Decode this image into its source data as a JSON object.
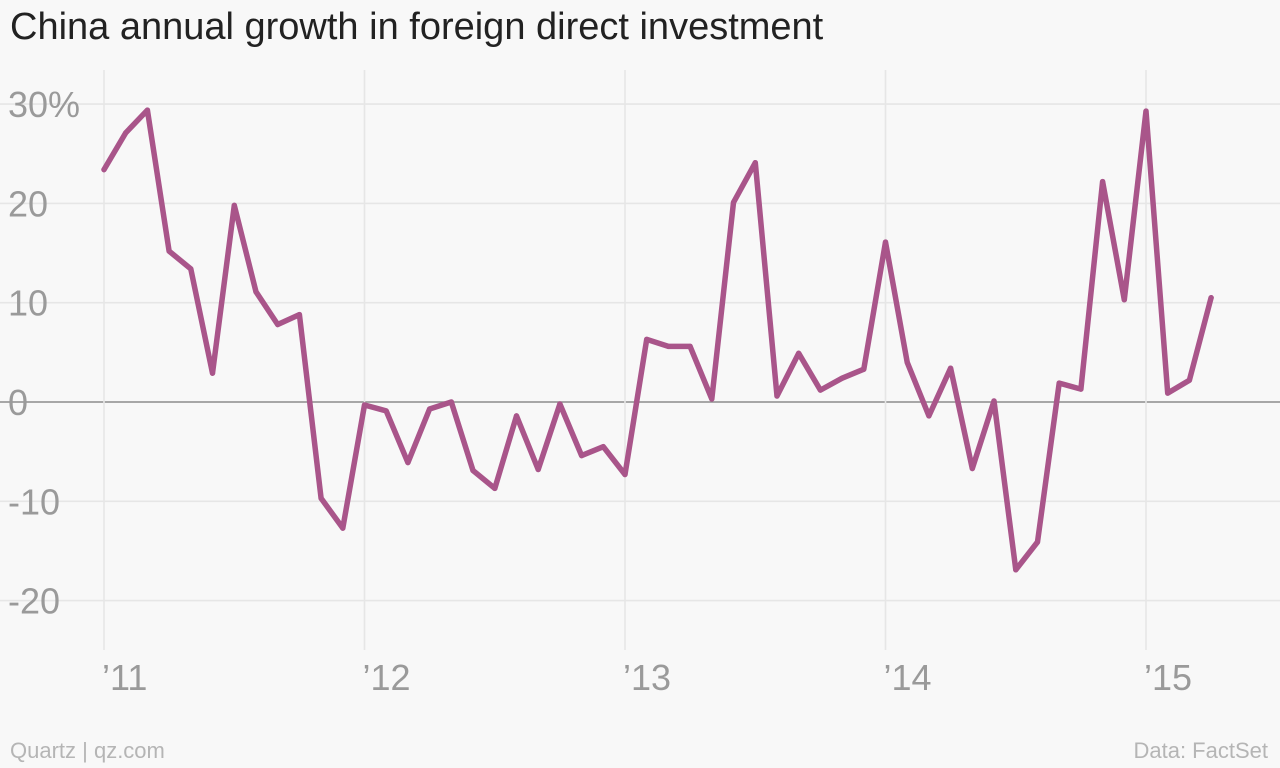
{
  "title": "China annual growth in foreign direct investment",
  "footer": {
    "credit": "Quartz | qz.com",
    "source": "Data: FactSet"
  },
  "colors": {
    "line": "#a9558a",
    "grid": "#e6e6e6",
    "zero_line": "#8c8c8c",
    "tick_text": "#9a9a9a",
    "background": "#f8f8f8"
  },
  "chart_data": {
    "type": "line",
    "title": "China annual growth in foreign direct investment",
    "xlabel": "",
    "ylabel": "",
    "ylim": [
      -25,
      32
    ],
    "y_ticks": [
      {
        "value": 30,
        "label": "30%"
      },
      {
        "value": 20,
        "label": "20"
      },
      {
        "value": 10,
        "label": "10"
      },
      {
        "value": 0,
        "label": "0"
      },
      {
        "value": -10,
        "label": "-10"
      },
      {
        "value": -20,
        "label": "-20"
      }
    ],
    "x_ticks": [
      {
        "value": "2011-01",
        "label": "’11"
      },
      {
        "value": "2012-01",
        "label": "’12"
      },
      {
        "value": "2013-01",
        "label": "’13"
      },
      {
        "value": "2014-01",
        "label": "’14"
      },
      {
        "value": "2015-01",
        "label": "’15"
      }
    ],
    "grid": true,
    "series": [
      {
        "x": [
          "2011-01",
          "2011-02",
          "2011-03",
          "2011-04",
          "2011-05",
          "2011-06",
          "2011-07",
          "2011-08",
          "2011-09",
          "2011-10",
          "2011-11",
          "2011-12",
          "2012-01",
          "2012-02",
          "2012-03",
          "2012-04",
          "2012-05",
          "2012-06",
          "2012-07",
          "2012-08",
          "2012-09",
          "2012-10",
          "2012-11",
          "2012-12",
          "2013-01",
          "2013-02",
          "2013-03",
          "2013-04",
          "2013-05",
          "2013-06",
          "2013-07",
          "2013-08",
          "2013-09",
          "2013-10",
          "2013-11",
          "2013-12",
          "2014-01",
          "2014-02",
          "2014-03",
          "2014-04",
          "2014-05",
          "2014-06",
          "2014-07",
          "2014-08",
          "2014-09",
          "2014-10",
          "2014-11",
          "2014-12",
          "2015-01",
          "2015-02",
          "2015-03",
          "2015-04"
        ],
        "values": [
          23.4,
          27.1,
          29.4,
          15.2,
          13.4,
          2.9,
          19.8,
          11.1,
          7.8,
          8.8,
          -9.7,
          -12.7,
          -0.3,
          -0.9,
          -6.1,
          -0.7,
          0.0,
          -6.9,
          -8.7,
          -1.4,
          -6.8,
          -0.2,
          -5.4,
          -4.5,
          -7.3,
          6.3,
          5.6,
          5.6,
          0.3,
          20.1,
          24.1,
          0.6,
          4.9,
          1.2,
          2.4,
          3.3,
          16.1,
          4.0,
          -1.4,
          3.4,
          -6.7,
          0.1,
          -16.9,
          -14.1,
          1.9,
          1.3,
          22.2,
          10.3,
          29.3,
          0.9,
          2.2,
          10.5
        ]
      }
    ]
  }
}
